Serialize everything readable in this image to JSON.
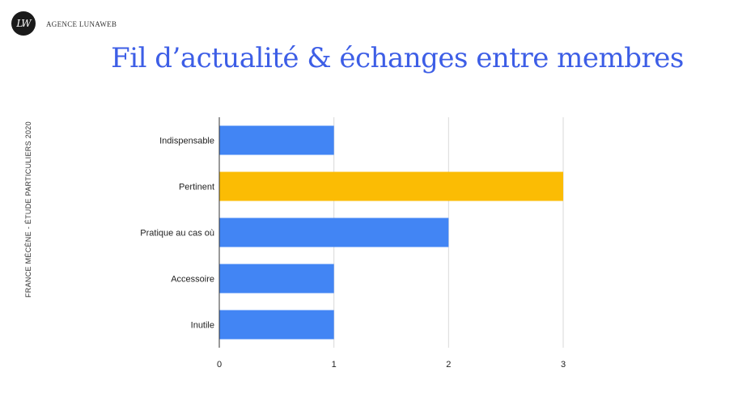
{
  "brand": {
    "logo_letters": "LW",
    "name": "AGENCE LUNAWEB"
  },
  "title": "Fil d’actualité & échanges entre membres",
  "side_note": "FRANCE MÉCÈNE - ÉTUDE  PARTICULIERS 2020",
  "colors": {
    "title": "#3d5ee6",
    "bar_default": "#4285f4",
    "bar_highlight": "#fbbc04",
    "grid": "#d9d9d9",
    "axis": "#333333"
  },
  "chart_data": {
    "type": "bar",
    "orientation": "horizontal",
    "categories": [
      "Indispensable",
      "Pertinent",
      "Pratique au cas où",
      "Accessoire",
      "Inutile"
    ],
    "values": [
      1,
      3,
      2,
      1,
      1
    ],
    "highlight_category": "Pertinent",
    "xlim": [
      0,
      3
    ],
    "xticks": [
      0,
      1,
      2,
      3
    ],
    "xlabel": "",
    "ylabel": "",
    "grid": true,
    "legend": "none"
  }
}
